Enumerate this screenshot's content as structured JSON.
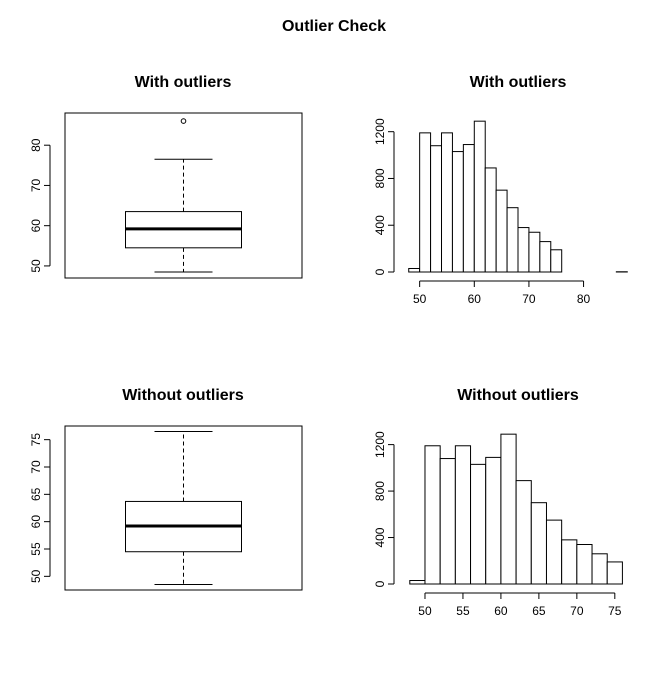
{
  "figure": {
    "title": "Outlier Check"
  },
  "chart_data": [
    {
      "type": "boxplot",
      "title": "With outliers",
      "xlabel": "",
      "ylabel": "",
      "ylim": [
        47,
        88
      ],
      "yticks": [
        50,
        60,
        70,
        80
      ],
      "stats": {
        "whisker_low": 48.5,
        "q1": 54.5,
        "median": 59.2,
        "q3": 63.5,
        "whisker_high": 76.5
      },
      "outliers": [
        86
      ]
    },
    {
      "type": "bar",
      "title": "With outliers",
      "xlabel": "",
      "ylabel": "",
      "xlim": [
        47.5,
        88.5
      ],
      "ylim": [
        0,
        1300
      ],
      "xticks": [
        50,
        60,
        70,
        80
      ],
      "yticks": [
        0,
        400,
        800,
        1200
      ],
      "bin_edges": [
        48,
        50,
        52,
        54,
        56,
        58,
        60,
        62,
        64,
        66,
        68,
        70,
        72,
        74,
        76,
        78,
        80,
        82,
        84,
        86,
        88
      ],
      "counts": [
        30,
        1190,
        1080,
        1190,
        1030,
        1090,
        1290,
        890,
        700,
        550,
        380,
        340,
        260,
        190,
        0,
        0,
        0,
        0,
        0,
        2
      ]
    },
    {
      "type": "boxplot",
      "title": "Without outliers",
      "xlabel": "",
      "ylabel": "",
      "ylim": [
        47.5,
        77.5
      ],
      "yticks": [
        50,
        55,
        60,
        65,
        70,
        75
      ],
      "stats": {
        "whisker_low": 48.5,
        "q1": 54.5,
        "median": 59.2,
        "q3": 63.7,
        "whisker_high": 76.5
      },
      "outliers": []
    },
    {
      "type": "bar",
      "title": "Without outliers",
      "xlabel": "",
      "ylabel": "",
      "xlim": [
        47.5,
        77
      ],
      "ylim": [
        0,
        1300
      ],
      "xticks": [
        50,
        55,
        60,
        65,
        70,
        75
      ],
      "yticks": [
        0,
        400,
        800,
        1200
      ],
      "bin_edges": [
        48,
        50,
        52,
        54,
        56,
        58,
        60,
        62,
        64,
        66,
        68,
        70,
        72,
        74,
        76
      ],
      "counts": [
        30,
        1190,
        1080,
        1190,
        1030,
        1090,
        1290,
        890,
        700,
        550,
        380,
        340,
        260,
        190
      ]
    }
  ]
}
